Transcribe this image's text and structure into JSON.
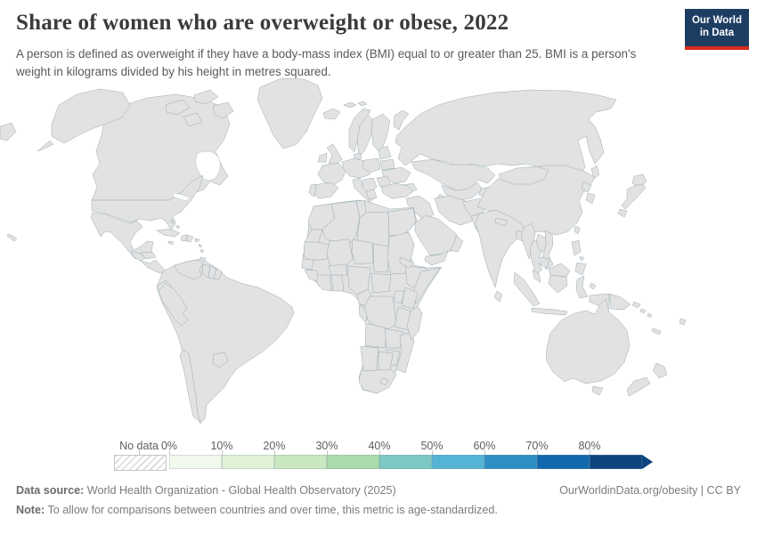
{
  "header": {
    "title": "Share of women who are overweight or obese, 2022",
    "subtitle": "A person is defined as overweight if they have a body-mass index (BMI) equal to or greater than 25. BMI is a person's weight in kilograms divided by his height in metres squared."
  },
  "logo": {
    "line1": "Our World",
    "line2": "in Data",
    "bg_color": "#1d3d63",
    "stripe_color": "#d7291e"
  },
  "chart_data": {
    "type": "choropleth_map",
    "title": "Share of women who are overweight or obese",
    "year": "2022",
    "unit": "%",
    "projection_note": "world map",
    "legend": {
      "no_data_label": "No data",
      "tick_labels": [
        "0%",
        "10%",
        "20%",
        "30%",
        "40%",
        "50%",
        "60%",
        "70%",
        "80%"
      ],
      "bin_order": [
        "b1",
        "b2",
        "b3",
        "b4",
        "b5",
        "b6",
        "b7",
        "b8",
        "b9"
      ],
      "palette": {
        "b1": "#f2faee",
        "b2": "#dff2d8",
        "b3": "#c9e8c1",
        "b4": "#a9dbae",
        "b5": "#7cc8c4",
        "b6": "#55b4d6",
        "b7": "#2f8fc4",
        "b8": "#1268ad",
        "b9": "#0d4480"
      },
      "no_data_key": "nd",
      "no_data_fill": "hatched"
    },
    "region_bins": {
      "canada": "b6",
      "greenland": "b6",
      "alaska": "b7",
      "usa": "b7",
      "hawaii": "b7",
      "mexico": "b7",
      "guatemala": "b7",
      "honduras": "b6",
      "nicaragua-panama": "b7",
      "cuba": "b6",
      "haiti": "b4",
      "dominican-republic": "b7",
      "jamaica": "b6",
      "puerto-rico": "b6",
      "bahamas": "b6",
      "lesser-antilles": "b8",
      "trinidad": "b8",
      "south-america": "b7",
      "venezuela": "b6",
      "guyana": "b6",
      "suriname": "b7",
      "french-guiana": "nd",
      "ecuador": "b8",
      "peru": "b8",
      "chile": "b8",
      "paraguay": "b8",
      "iceland": "b5",
      "svalbard": "b5",
      "uk": "b5",
      "ireland": "b5",
      "norway": "b5",
      "sweden": "b5",
      "finland": "b5",
      "denmark": "b4",
      "germany-central": "b5",
      "france": "b4",
      "spain": "b5",
      "portugal": "b6",
      "italy": "b5",
      "poland": "b6",
      "baltics": "b4",
      "belarus": "b6",
      "ukraine": "b6",
      "romania": "b5",
      "balkans": "b6",
      "greece": "b6",
      "russia": "b6",
      "kazakhstan": "b5",
      "uzbekistan": "b7",
      "turkmenistan": "b6",
      "kyrgyz-tajik": "b6",
      "caucasus": "b7",
      "turkey": "b8",
      "syria-iraq": "b8",
      "saudi-arabia": "b8",
      "yemen": "b5",
      "oman": "b7",
      "iran": "b7",
      "afghanistan": "b4",
      "pakistan": "b5",
      "africa": "b3",
      "morocco": "b7",
      "western-sahara": "nd",
      "algeria": "b7",
      "tunisia": "b7",
      "libya": "b8",
      "egypt": "b9",
      "mauritania": "b4",
      "mali": "b3",
      "niger": "b2",
      "chad": "b2",
      "sudan": "b5",
      "senegal": "b4",
      "guinea-group": "b3",
      "ivory-coast": "b4",
      "ghana-togo": "b5",
      "burkina-faso": "b3",
      "nigeria": "b4",
      "cameroon": "b5",
      "gabon-congo": "b6",
      "central-african-republic": "b3",
      "ethiopia": "b1",
      "eritrea": "b2",
      "somalia": "b5",
      "kenya": "b4",
      "uganda": "b3",
      "drc": "b3",
      "tanzania": "b5",
      "angola": "b4",
      "zambia": "b4",
      "mozambique": "b5",
      "zimbabwe": "b5",
      "namibia": "b5",
      "botswana": "b6",
      "south-africa": "b8",
      "lesotho": "b7",
      "madagascar": "b1",
      "china": "b3",
      "mongolia": "b7",
      "india": "b3",
      "nepal": "b6",
      "bangladesh": "b2",
      "sri-lanka": "b4",
      "myanmar": "b4",
      "thailand": "b3",
      "laos": "b2",
      "vietnam": "b1",
      "cambodia": "b2",
      "malaysia": "b5",
      "taiwan": "b3",
      "north-korea": "b4",
      "south-korea": "b5",
      "japan": "b2",
      "philippines": "b4",
      "indonesia": "b5",
      "borneo-malaysia": "b6",
      "west-papua": "b5",
      "papua-new-guinea": "b6",
      "solomon-islands": "b6",
      "fiji": "b8",
      "new-caledonia": "nd",
      "australia": "b6",
      "new-zealand": "b7"
    }
  },
  "footer": {
    "datasource_label": "Data source:",
    "datasource_text": " World Health Organization - Global Health Observatory (2025)",
    "note_label": "Note:",
    "note_text": " To allow for comparisons between countries and over time, this metric is age-standardized.",
    "rights": "OurWorldinData.org/obesity | CC BY"
  }
}
